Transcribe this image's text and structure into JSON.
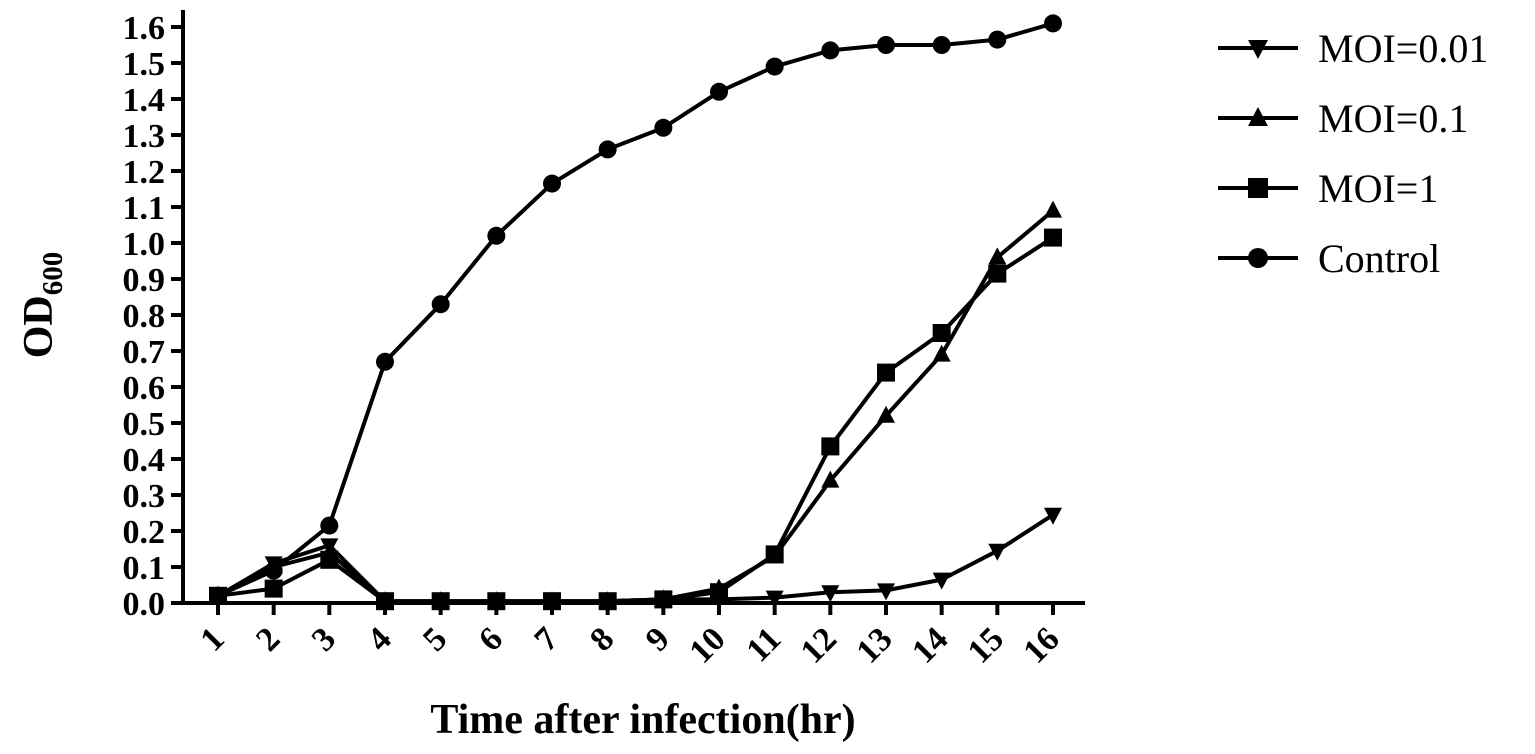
{
  "chart_data": {
    "type": "line",
    "xlabel": "Time after infection(hr)",
    "ylabel": "OD",
    "ylabel_subscript": "600",
    "x": [
      1,
      2,
      3,
      4,
      5,
      6,
      7,
      8,
      9,
      10,
      11,
      12,
      13,
      14,
      15,
      16
    ],
    "x_tick_labels": [
      "1",
      "2",
      "3",
      "4",
      "5",
      "6",
      "7",
      "8",
      "9",
      "10",
      "11",
      "12",
      "13",
      "14",
      "15",
      "16"
    ],
    "ylim": [
      0.0,
      1.6
    ],
    "y_tick_labels": [
      "0.0",
      "0.1",
      "0.2",
      "0.3",
      "0.4",
      "0.5",
      "0.6",
      "0.7",
      "0.8",
      "0.9",
      "1.0",
      "1.1",
      "1.2",
      "1.3",
      "1.4",
      "1.5",
      "1.6"
    ],
    "grid": false,
    "legend_position": "right",
    "series": [
      {
        "name": "MOI=0.01",
        "marker": "triangle-down",
        "values": [
          0.02,
          0.11,
          0.16,
          0.005,
          0.005,
          0.005,
          0.005,
          0.005,
          0.01,
          0.01,
          0.015,
          0.03,
          0.035,
          0.065,
          0.145,
          0.245
        ]
      },
      {
        "name": "MOI=0.1",
        "marker": "triangle-up",
        "values": [
          0.02,
          0.1,
          0.14,
          0.005,
          0.005,
          0.005,
          0.005,
          0.005,
          0.01,
          0.04,
          0.13,
          0.34,
          0.52,
          0.69,
          0.96,
          1.09
        ]
      },
      {
        "name": "MOI=1",
        "marker": "square",
        "values": [
          0.02,
          0.04,
          0.12,
          0.005,
          0.005,
          0.005,
          0.005,
          0.005,
          0.01,
          0.03,
          0.135,
          0.435,
          0.64,
          0.75,
          0.915,
          1.015
        ]
      },
      {
        "name": "Control",
        "marker": "circle",
        "values": [
          0.02,
          0.09,
          0.215,
          0.67,
          0.83,
          1.02,
          1.165,
          1.26,
          1.32,
          1.42,
          1.49,
          1.535,
          1.55,
          1.55,
          1.565,
          1.61
        ]
      }
    ]
  }
}
